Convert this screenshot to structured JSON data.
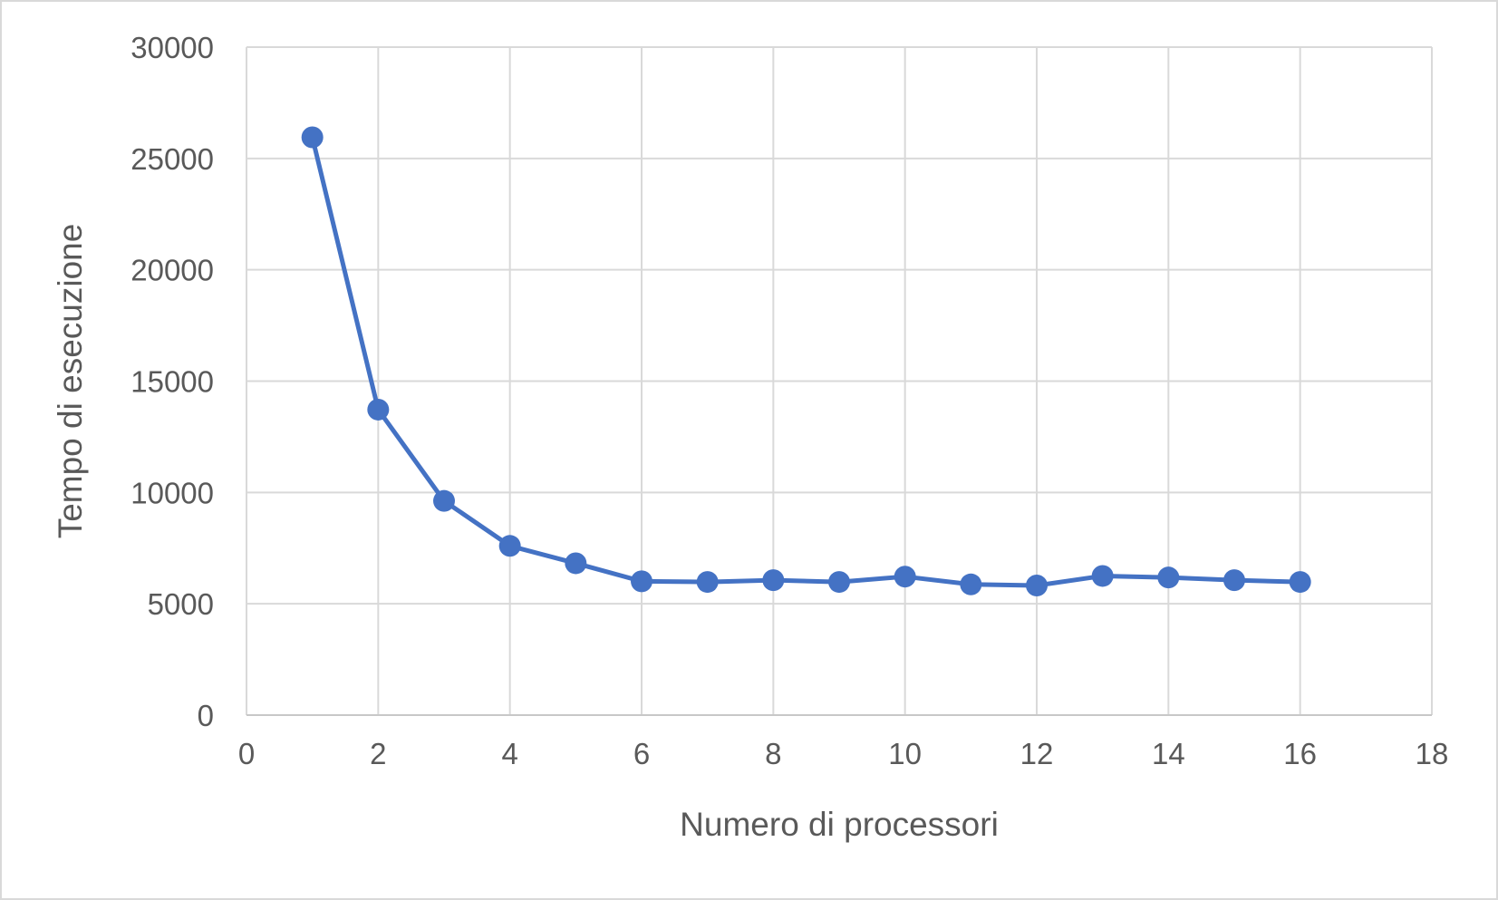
{
  "chart_data": {
    "type": "line",
    "title": "",
    "xlabel": "Numero di processori",
    "ylabel": "Tempo di esecuzione",
    "xlim": [
      0,
      18
    ],
    "ylim": [
      0,
      30000
    ],
    "xticks": [
      0,
      2,
      4,
      6,
      8,
      10,
      12,
      14,
      16,
      18
    ],
    "yticks": [
      0,
      5000,
      10000,
      15000,
      20000,
      25000,
      30000
    ],
    "grid": true,
    "legend": "none",
    "series": [
      {
        "color": "#4472c4",
        "marker": "circle",
        "x": [
          1,
          2,
          3,
          4,
          5,
          6,
          7,
          8,
          9,
          10,
          11,
          12,
          13,
          14,
          15,
          16
        ],
        "y": [
          25950,
          13720,
          9620,
          7600,
          6820,
          6010,
          5980,
          6060,
          5980,
          6220,
          5870,
          5820,
          6250,
          6180,
          6060,
          5980
        ]
      }
    ]
  },
  "colors": {
    "series": "#4472c4",
    "grid": "#d9d9d9",
    "text": "#595959",
    "border": "#d9d9d9"
  }
}
